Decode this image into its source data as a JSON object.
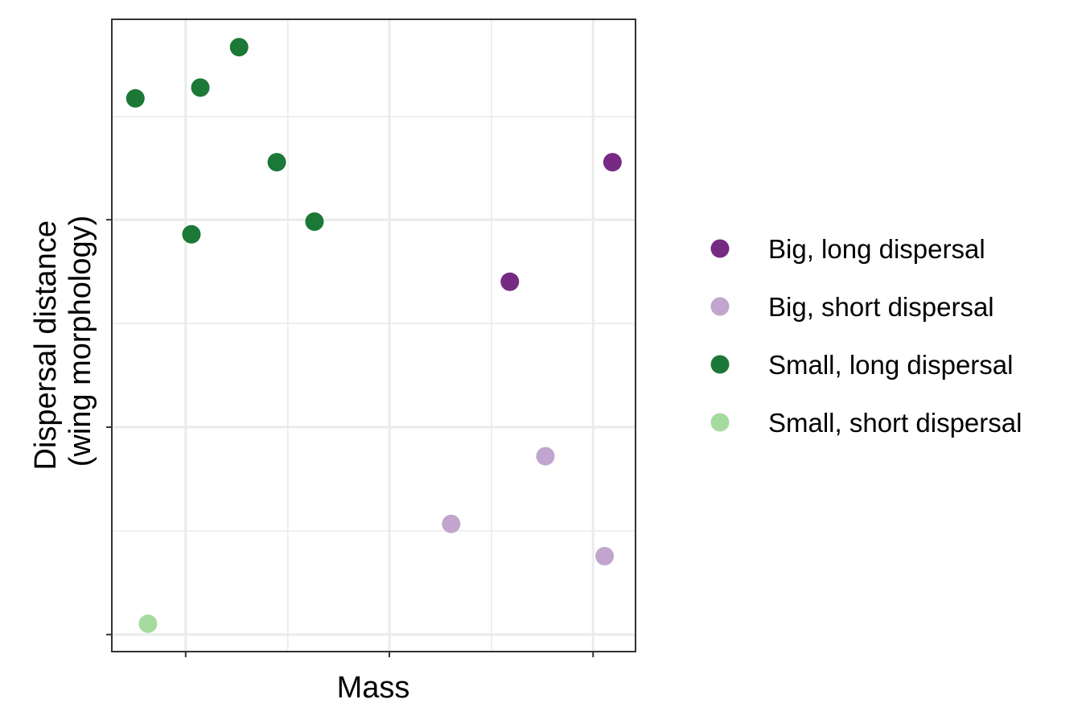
{
  "chart_data": {
    "type": "scatter",
    "xlabel": "Mass",
    "ylabel_line1": "Dispersal distance",
    "ylabel_line2": "(wing morphology)",
    "x_tick_labels": false,
    "y_tick_labels": false,
    "grid": true,
    "legend_position": "right",
    "xlim": [
      0,
      1
    ],
    "ylim": [
      0,
      1
    ],
    "series": [
      {
        "name": "Big, long dispersal",
        "color": "#762a83",
        "points": [
          {
            "x": 0.956,
            "y": 0.774
          },
          {
            "x": 0.76,
            "y": 0.585
          }
        ]
      },
      {
        "name": "Big, short dispersal",
        "color": "#c2a5cf",
        "points": [
          {
            "x": 0.828,
            "y": 0.309
          },
          {
            "x": 0.648,
            "y": 0.202
          },
          {
            "x": 0.941,
            "y": 0.151
          }
        ]
      },
      {
        "name": "Small, long dispersal",
        "color": "#1b7837",
        "points": [
          {
            "x": 0.243,
            "y": 0.956
          },
          {
            "x": 0.169,
            "y": 0.892
          },
          {
            "x": 0.045,
            "y": 0.875
          },
          {
            "x": 0.315,
            "y": 0.774
          },
          {
            "x": 0.387,
            "y": 0.68
          },
          {
            "x": 0.152,
            "y": 0.66
          }
        ]
      },
      {
        "name": "Small, short dispersal",
        "color": "#a6dba0",
        "points": [
          {
            "x": 0.069,
            "y": 0.044
          }
        ]
      }
    ]
  }
}
